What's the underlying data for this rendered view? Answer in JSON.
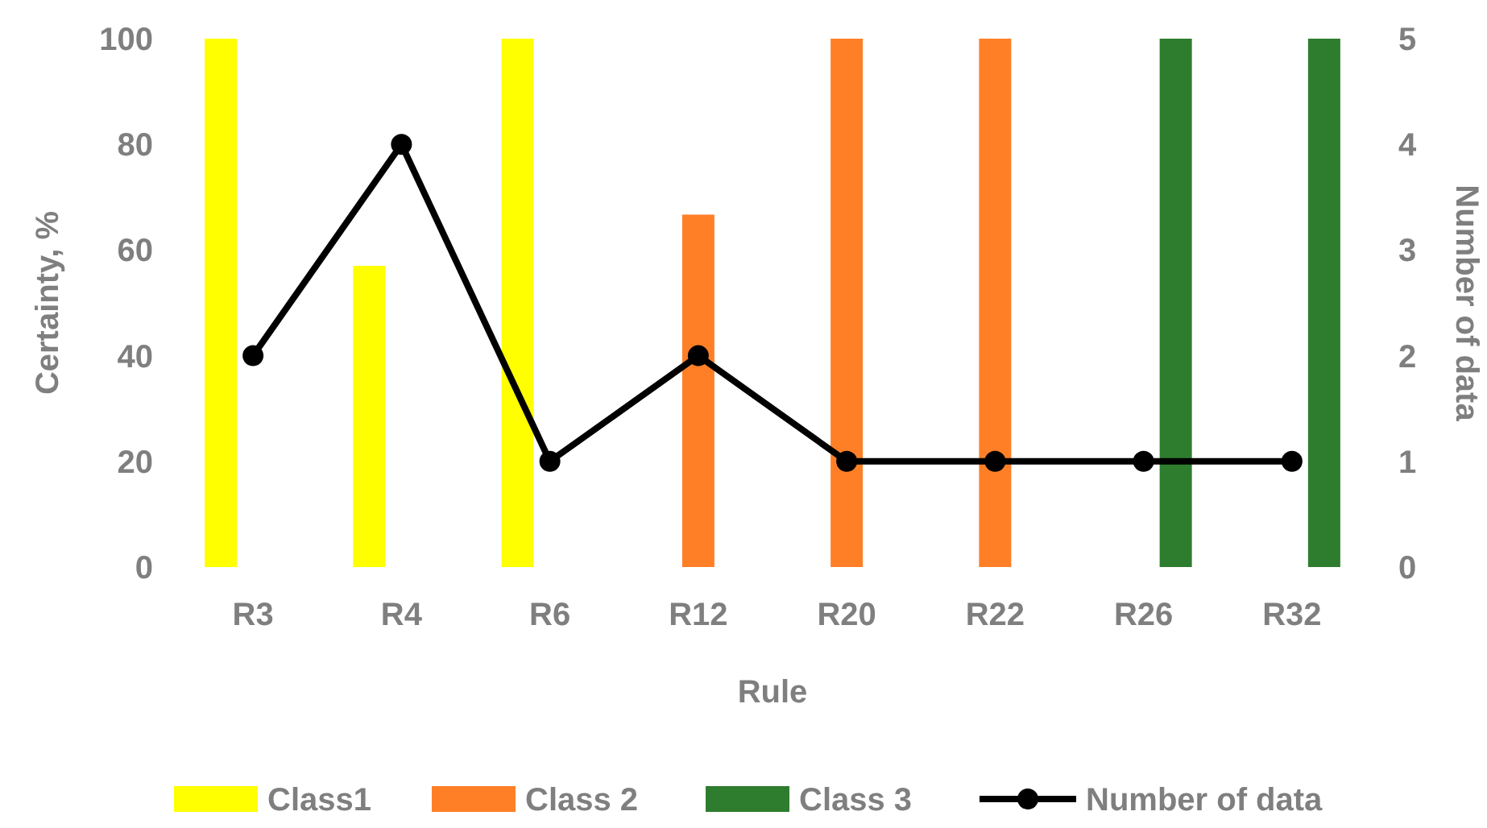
{
  "chart_data": {
    "type": "bar",
    "xlabel": "Rule",
    "ylabel": "Certainty, %",
    "y2label": "Number of data",
    "categories": [
      "R3",
      "R4",
      "R6",
      "R12",
      "R20",
      "R22",
      "R26",
      "R32"
    ],
    "series": [
      {
        "name": "Class1",
        "color": "#ffff00",
        "values": [
          100,
          57,
          100,
          null,
          null,
          null,
          null,
          null
        ]
      },
      {
        "name": "Class 2",
        "color": "#ff7f27",
        "values": [
          null,
          null,
          null,
          66.7,
          100,
          100,
          null,
          null
        ]
      },
      {
        "name": "Class 3",
        "color": "#2e7d2e",
        "values": [
          null,
          null,
          null,
          null,
          null,
          null,
          100,
          100
        ]
      },
      {
        "name": "Number of data",
        "type": "line",
        "axis": "y2",
        "color": "#000000",
        "marker": "circle",
        "values": [
          2,
          4,
          1,
          2,
          1,
          1,
          1,
          1
        ]
      }
    ],
    "ylim": [
      0,
      100
    ],
    "yticks": [
      0,
      20,
      40,
      60,
      80,
      100
    ],
    "y2lim": [
      0,
      5
    ],
    "y2ticks": [
      0,
      1,
      2,
      3,
      4,
      5
    ],
    "grid": false,
    "legend": "bottom"
  }
}
